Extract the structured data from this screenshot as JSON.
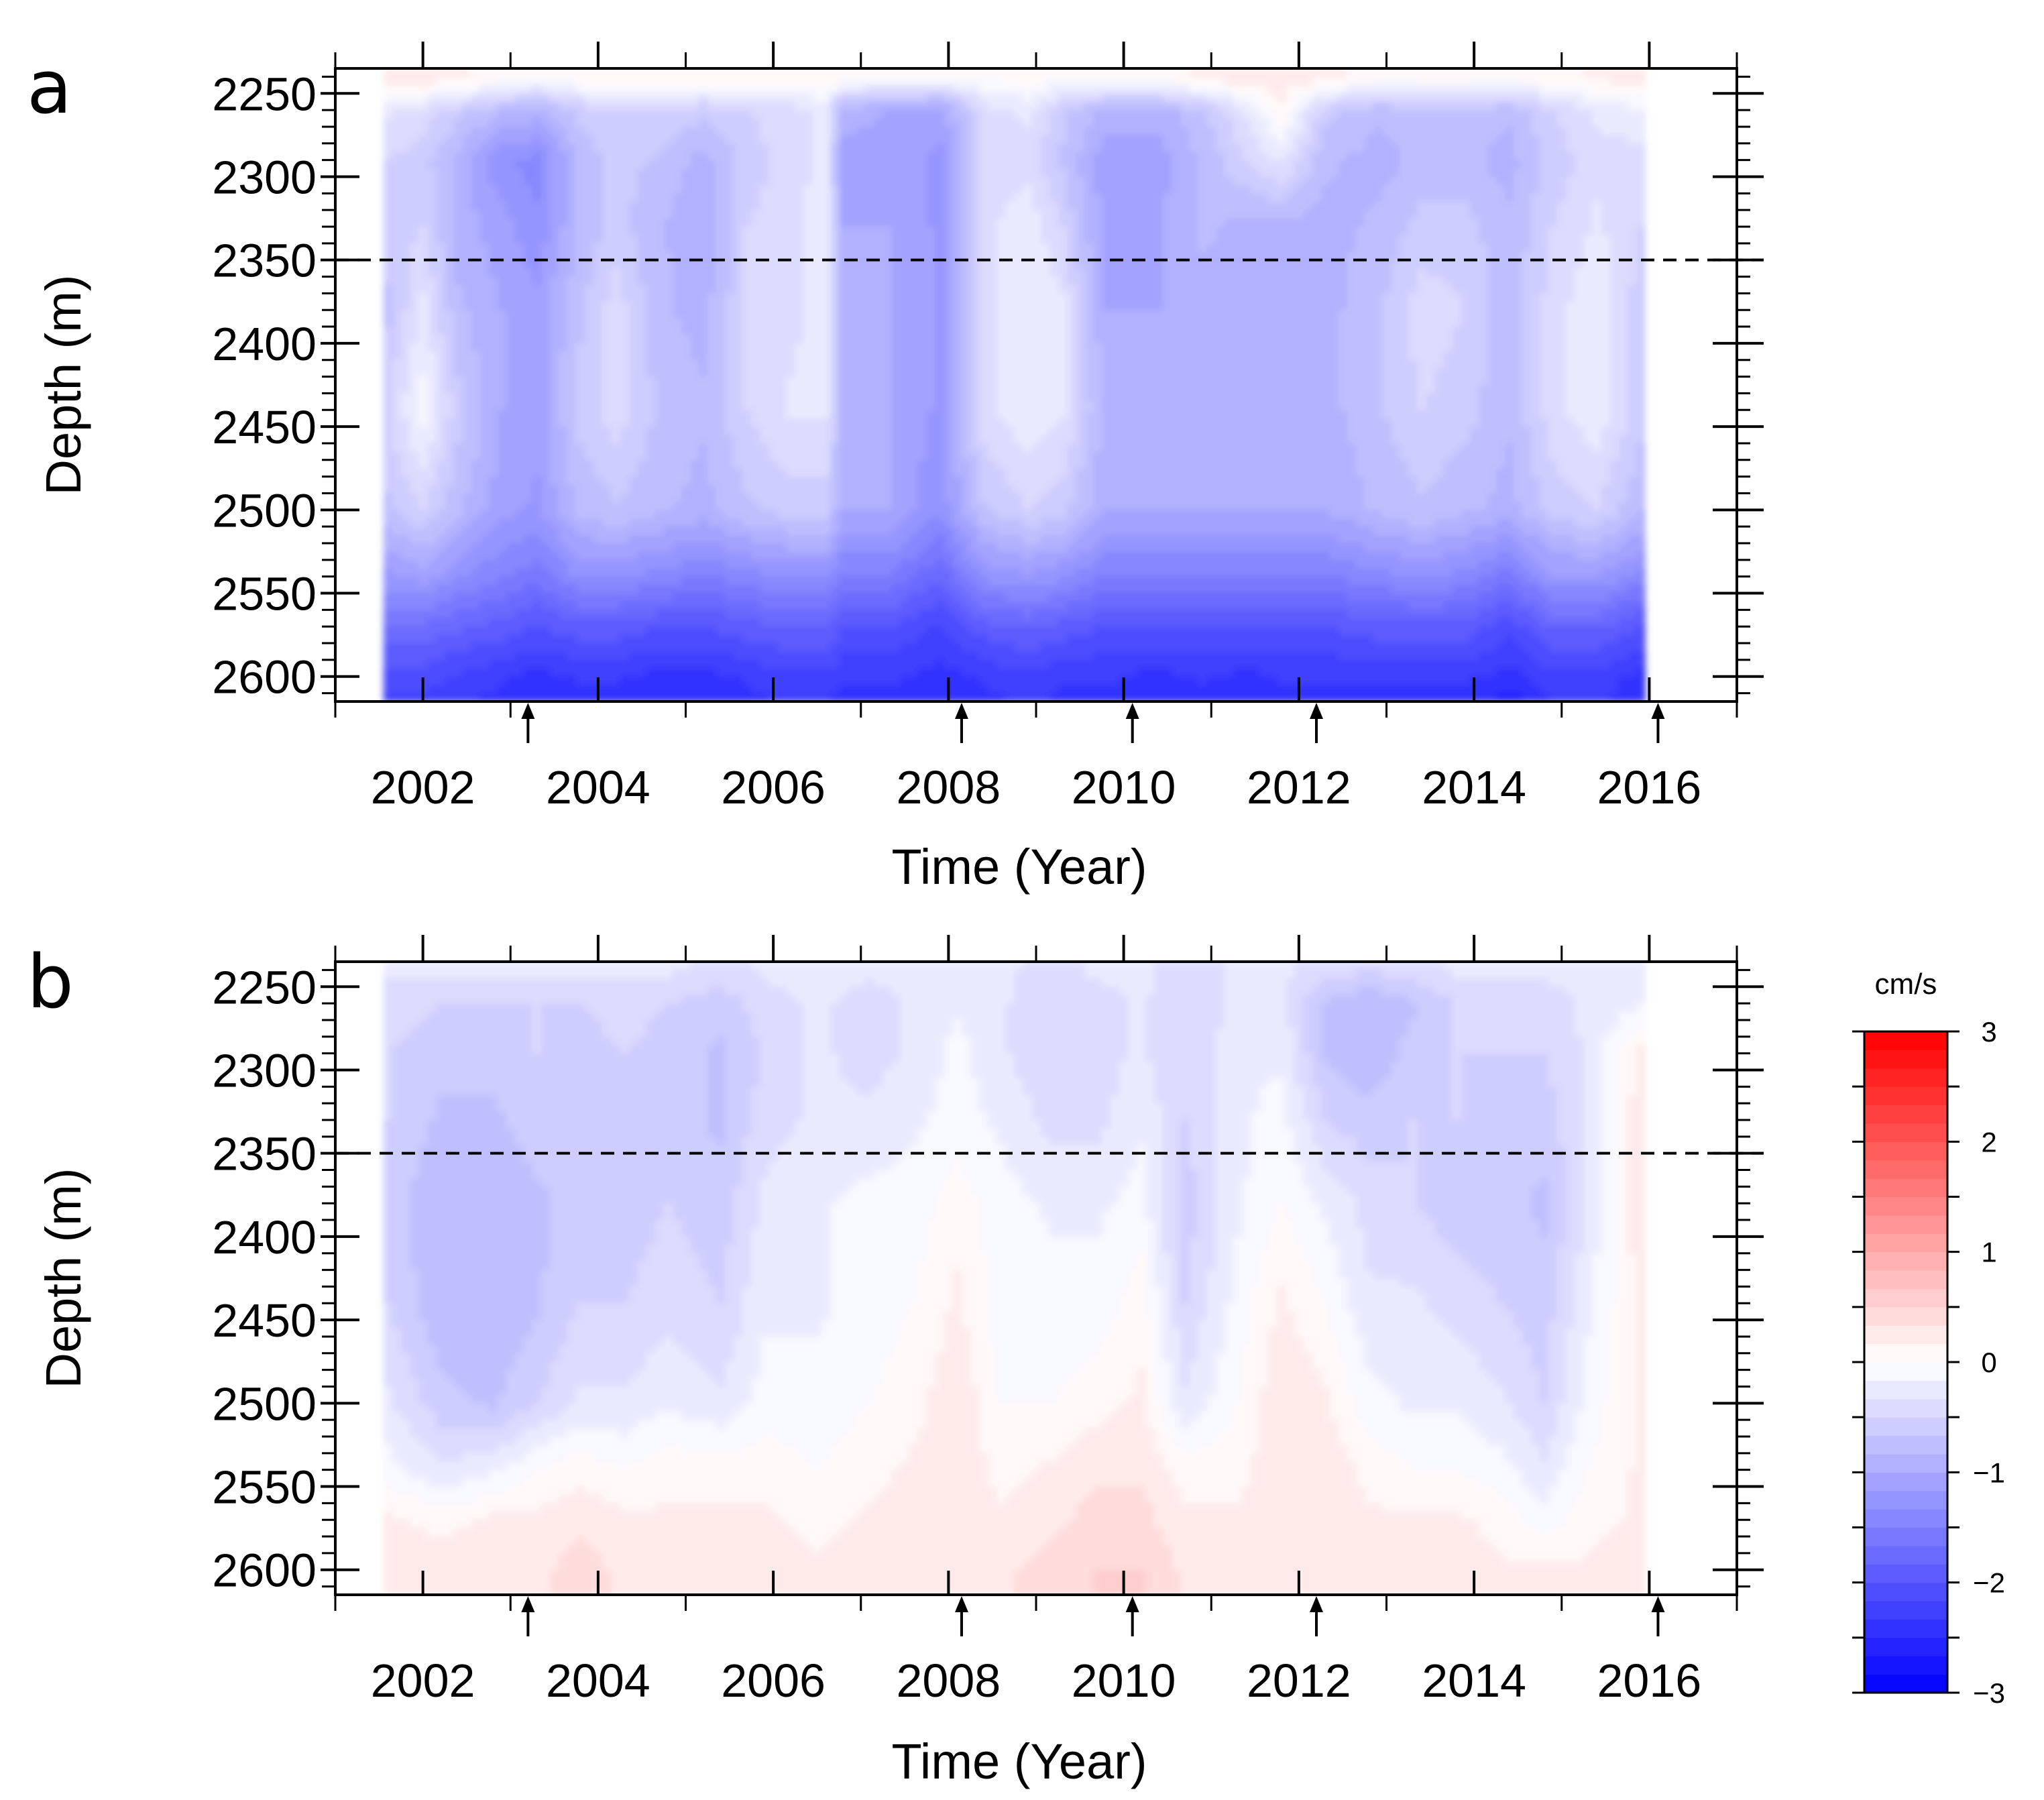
{
  "chart_data": [
    {
      "panel": "a",
      "type": "heatmap",
      "xlabel": "Time (Year)",
      "ylabel": "Depth (m)",
      "xlim": [
        2001,
        2017
      ],
      "ylim": [
        2235,
        2615
      ],
      "x_ticks": [
        2002,
        2004,
        2006,
        2008,
        2010,
        2012,
        2014,
        2016
      ],
      "y_ticks": [
        2250,
        2300,
        2350,
        2400,
        2450,
        2500,
        2550,
        2600
      ],
      "data_time_range": [
        2001.55,
        2015.95
      ],
      "dashed_line_depth": 2350,
      "arrow_times": [
        2003.2,
        2008.15,
        2010.1,
        2012.2,
        2016.1
      ],
      "profile_depths": [
        2240,
        2260,
        2290,
        2330,
        2380,
        2440,
        2500,
        2540,
        2570,
        2600,
        2615
      ],
      "profiles": [
        {
          "t": 2001.6,
          "v": [
            0.3,
            -0.3,
            -0.5,
            -0.6,
            -0.7,
            -0.5,
            -0.7,
            -1.2,
            -1.7,
            -2.1,
            -2.2
          ]
        },
        {
          "t": 2002.0,
          "v": [
            0.3,
            -0.4,
            -0.6,
            -0.5,
            -0.3,
            -0.1,
            -0.5,
            -1.1,
            -1.7,
            -2.1,
            -2.2
          ]
        },
        {
          "t": 2002.4,
          "v": [
            0.2,
            -0.6,
            -0.9,
            -0.9,
            -0.8,
            -0.6,
            -0.8,
            -1.3,
            -1.8,
            -2.2,
            -2.3
          ]
        },
        {
          "t": 2002.9,
          "v": [
            0.1,
            -0.8,
            -1.3,
            -1.1,
            -1.0,
            -1.0,
            -1.1,
            -1.5,
            -1.9,
            -2.3,
            -2.4
          ]
        },
        {
          "t": 2003.3,
          "v": [
            0.0,
            -0.9,
            -1.4,
            -1.3,
            -1.1,
            -1.1,
            -1.2,
            -1.6,
            -2.0,
            -2.4,
            -2.5
          ]
        },
        {
          "t": 2003.8,
          "v": [
            0.1,
            -0.6,
            -0.8,
            -0.8,
            -0.7,
            -0.6,
            -0.8,
            -1.3,
            -1.9,
            -2.3,
            -2.4
          ]
        },
        {
          "t": 2004.2,
          "v": [
            0.1,
            -0.5,
            -0.6,
            -0.6,
            -0.4,
            -0.4,
            -0.7,
            -1.3,
            -1.9,
            -2.3,
            -2.4
          ]
        },
        {
          "t": 2004.7,
          "v": [
            0.1,
            -0.5,
            -0.7,
            -0.8,
            -0.8,
            -0.7,
            -0.8,
            -1.4,
            -2.0,
            -2.4,
            -2.5
          ]
        },
        {
          "t": 2005.2,
          "v": [
            0.1,
            -0.6,
            -0.9,
            -1.0,
            -0.9,
            -0.8,
            -0.9,
            -1.5,
            -2.0,
            -2.4,
            -2.5
          ]
        },
        {
          "t": 2005.7,
          "v": [
            0.1,
            -0.5,
            -0.6,
            -0.5,
            -0.5,
            -0.5,
            -0.7,
            -1.4,
            -1.9,
            -2.3,
            -2.4
          ]
        },
        {
          "t": 2006.2,
          "v": [
            0.1,
            -0.4,
            -0.4,
            -0.4,
            -0.4,
            -0.3,
            -0.6,
            -1.3,
            -1.8,
            -2.2,
            -2.3
          ]
        },
        {
          "t": 2006.6,
          "v": [
            0.1,
            -0.3,
            -0.3,
            -0.2,
            -0.2,
            -0.3,
            -0.6,
            -1.3,
            -1.8,
            -2.2,
            -2.3
          ]
        },
        {
          "t": 2006.8,
          "v": [
            0.1,
            -0.9,
            -1.1,
            -1.0,
            -1.0,
            -0.9,
            -1.0,
            -1.5,
            -2.0,
            -2.3,
            -2.4
          ]
        },
        {
          "t": 2007.3,
          "v": [
            0.0,
            -1.0,
            -1.1,
            -1.0,
            -1.0,
            -1.0,
            -1.0,
            -1.5,
            -2.0,
            -2.3,
            -2.4
          ]
        },
        {
          "t": 2007.9,
          "v": [
            0.0,
            -1.1,
            -1.2,
            -1.2,
            -1.2,
            -1.2,
            -1.3,
            -1.8,
            -2.2,
            -2.4,
            -2.5
          ]
        },
        {
          "t": 2008.4,
          "v": [
            0.0,
            -0.4,
            -0.5,
            -0.4,
            -0.4,
            -0.4,
            -0.7,
            -1.3,
            -1.9,
            -2.3,
            -2.4
          ]
        },
        {
          "t": 2008.9,
          "v": [
            0.1,
            -0.3,
            -0.4,
            -0.2,
            -0.2,
            -0.2,
            -0.5,
            -1.2,
            -1.8,
            -2.2,
            -2.3
          ]
        },
        {
          "t": 2009.3,
          "v": [
            0.0,
            -0.6,
            -0.7,
            -0.5,
            -0.3,
            -0.3,
            -0.6,
            -1.3,
            -1.9,
            -2.3,
            -2.4
          ]
        },
        {
          "t": 2009.8,
          "v": [
            0.1,
            -0.9,
            -1.1,
            -1.1,
            -1.0,
            -0.9,
            -1.0,
            -1.5,
            -2.0,
            -2.3,
            -2.4
          ]
        },
        {
          "t": 2010.4,
          "v": [
            0.1,
            -0.9,
            -1.1,
            -1.0,
            -1.0,
            -0.9,
            -1.0,
            -1.5,
            -2.0,
            -2.4,
            -2.5
          ]
        },
        {
          "t": 2010.9,
          "v": [
            0.2,
            -0.7,
            -0.8,
            -0.8,
            -0.9,
            -0.9,
            -1.0,
            -1.5,
            -2.0,
            -2.3,
            -2.4
          ]
        },
        {
          "t": 2011.4,
          "v": [
            0.3,
            -0.3,
            -0.5,
            -0.9,
            -0.9,
            -1.0,
            -1.0,
            -1.5,
            -2.0,
            -2.4,
            -2.5
          ]
        },
        {
          "t": 2011.8,
          "v": [
            0.3,
            0.1,
            -0.3,
            -0.9,
            -1.0,
            -1.0,
            -1.0,
            -1.5,
            -2.0,
            -2.3,
            -2.4
          ]
        },
        {
          "t": 2012.3,
          "v": [
            0.2,
            -0.6,
            -0.8,
            -0.9,
            -0.9,
            -0.9,
            -1.0,
            -1.5,
            -2.0,
            -2.3,
            -2.4
          ]
        },
        {
          "t": 2012.9,
          "v": [
            0.1,
            -0.8,
            -0.9,
            -0.8,
            -0.7,
            -0.7,
            -0.8,
            -1.4,
            -1.9,
            -2.3,
            -2.4
          ]
        },
        {
          "t": 2013.4,
          "v": [
            0.1,
            -0.7,
            -0.8,
            -0.6,
            -0.4,
            -0.5,
            -0.7,
            -1.3,
            -1.9,
            -2.3,
            -2.4
          ]
        },
        {
          "t": 2013.9,
          "v": [
            0.1,
            -0.7,
            -0.8,
            -0.6,
            -0.5,
            -0.6,
            -0.8,
            -1.4,
            -1.9,
            -2.3,
            -2.4
          ]
        },
        {
          "t": 2014.4,
          "v": [
            0.1,
            -0.8,
            -0.9,
            -0.8,
            -0.8,
            -0.8,
            -0.9,
            -1.6,
            -2.1,
            -2.4,
            -2.6
          ]
        },
        {
          "t": 2014.9,
          "v": [
            0.1,
            -0.5,
            -0.6,
            -0.5,
            -0.4,
            -0.4,
            -0.6,
            -1.2,
            -1.8,
            -2.2,
            -2.3
          ]
        },
        {
          "t": 2015.4,
          "v": [
            0.2,
            -0.3,
            -0.4,
            -0.3,
            -0.2,
            -0.2,
            -0.5,
            -1.2,
            -1.8,
            -2.2,
            -2.3
          ]
        },
        {
          "t": 2015.9,
          "v": [
            0.3,
            -0.2,
            -0.4,
            -0.5,
            -0.6,
            -0.6,
            -0.8,
            -1.4,
            -2.0,
            -2.4,
            -2.5
          ]
        }
      ]
    },
    {
      "panel": "b",
      "type": "heatmap",
      "xlabel": "Time (Year)",
      "ylabel": "Depth (m)",
      "xlim": [
        2001,
        2017
      ],
      "ylim": [
        2235,
        2615
      ],
      "x_ticks": [
        2002,
        2004,
        2006,
        2008,
        2010,
        2012,
        2014,
        2016
      ],
      "y_ticks": [
        2250,
        2300,
        2350,
        2400,
        2450,
        2500,
        2550,
        2600
      ],
      "data_time_range": [
        2001.55,
        2015.95
      ],
      "dashed_line_depth": 2350,
      "arrow_times": [
        2003.2,
        2008.15,
        2010.1,
        2012.2,
        2016.1
      ],
      "profile_depths": [
        2240,
        2260,
        2290,
        2330,
        2380,
        2440,
        2500,
        2540,
        2570,
        2600,
        2615
      ],
      "profiles": [
        {
          "t": 2001.6,
          "v": [
            -0.3,
            -0.4,
            -0.5,
            -0.5,
            -0.6,
            -0.5,
            -0.3,
            -0.1,
            0.2,
            0.3,
            0.3
          ]
        },
        {
          "t": 2002.2,
          "v": [
            -0.3,
            -0.5,
            -0.6,
            -0.7,
            -0.8,
            -0.8,
            -0.6,
            -0.3,
            0.1,
            0.3,
            0.3
          ]
        },
        {
          "t": 2002.8,
          "v": [
            -0.3,
            -0.5,
            -0.6,
            -0.7,
            -0.8,
            -0.8,
            -0.7,
            -0.2,
            0.2,
            0.3,
            0.3
          ]
        },
        {
          "t": 2003.3,
          "v": [
            -0.3,
            -0.5,
            -0.5,
            -0.6,
            -0.7,
            -0.7,
            -0.5,
            0.0,
            0.2,
            0.3,
            0.3
          ]
        },
        {
          "t": 2003.8,
          "v": [
            -0.3,
            -0.5,
            -0.6,
            -0.6,
            -0.6,
            -0.5,
            -0.3,
            0.1,
            0.3,
            0.4,
            0.4
          ]
        },
        {
          "t": 2004.3,
          "v": [
            -0.3,
            -0.4,
            -0.5,
            -0.6,
            -0.6,
            -0.5,
            -0.3,
            0.0,
            0.2,
            0.3,
            0.3
          ]
        },
        {
          "t": 2004.8,
          "v": [
            -0.3,
            -0.5,
            -0.6,
            -0.6,
            -0.5,
            -0.4,
            -0.2,
            0.1,
            0.2,
            0.3,
            0.3
          ]
        },
        {
          "t": 2005.4,
          "v": [
            -0.4,
            -0.6,
            -0.7,
            -0.7,
            -0.6,
            -0.5,
            -0.3,
            0.1,
            0.2,
            0.3,
            0.3
          ]
        },
        {
          "t": 2005.9,
          "v": [
            -0.3,
            -0.4,
            -0.5,
            -0.4,
            -0.3,
            -0.2,
            -0.1,
            0.1,
            0.2,
            0.3,
            0.3
          ]
        },
        {
          "t": 2006.5,
          "v": [
            -0.3,
            -0.3,
            -0.3,
            -0.3,
            -0.2,
            -0.2,
            -0.1,
            0.0,
            0.1,
            0.2,
            0.2
          ]
        },
        {
          "t": 2007.1,
          "v": [
            -0.3,
            -0.4,
            -0.4,
            -0.3,
            -0.1,
            -0.1,
            0.0,
            0.1,
            0.2,
            0.3,
            0.3
          ]
        },
        {
          "t": 2007.6,
          "v": [
            -0.3,
            -0.3,
            -0.3,
            -0.2,
            -0.1,
            0.0,
            0.1,
            0.2,
            0.3,
            0.3,
            0.3
          ]
        },
        {
          "t": 2008.1,
          "v": [
            -0.2,
            -0.2,
            -0.1,
            -0.1,
            0.1,
            0.2,
            0.3,
            0.3,
            0.3,
            0.3,
            0.3
          ]
        },
        {
          "t": 2008.6,
          "v": [
            -0.3,
            -0.3,
            -0.3,
            -0.2,
            -0.1,
            -0.1,
            0.0,
            0.1,
            0.2,
            0.3,
            0.3
          ]
        },
        {
          "t": 2009.2,
          "v": [
            -0.4,
            -0.5,
            -0.5,
            -0.4,
            -0.2,
            -0.1,
            0.0,
            0.2,
            0.3,
            0.4,
            0.4
          ]
        },
        {
          "t": 2009.7,
          "v": [
            -0.3,
            -0.4,
            -0.4,
            -0.4,
            -0.2,
            -0.1,
            0.1,
            0.3,
            0.4,
            0.5,
            0.5
          ]
        },
        {
          "t": 2010.2,
          "v": [
            -0.3,
            -0.3,
            -0.3,
            -0.2,
            -0.1,
            0.1,
            0.2,
            0.3,
            0.4,
            0.5,
            0.5
          ]
        },
        {
          "t": 2010.7,
          "v": [
            -0.4,
            -0.5,
            -0.5,
            -0.5,
            -0.6,
            -0.5,
            -0.3,
            0.1,
            0.2,
            0.3,
            0.3
          ]
        },
        {
          "t": 2011.3,
          "v": [
            -0.3,
            -0.3,
            -0.2,
            -0.2,
            -0.2,
            -0.1,
            0.0,
            0.1,
            0.2,
            0.3,
            0.3
          ]
        },
        {
          "t": 2011.8,
          "v": [
            -0.3,
            -0.3,
            -0.2,
            -0.1,
            0.0,
            0.2,
            0.3,
            0.3,
            0.3,
            0.3,
            0.3
          ]
        },
        {
          "t": 2012.3,
          "v": [
            -0.4,
            -0.7,
            -0.7,
            -0.5,
            -0.2,
            0.0,
            0.2,
            0.3,
            0.3,
            0.3,
            0.3
          ]
        },
        {
          "t": 2012.8,
          "v": [
            -0.5,
            -0.8,
            -0.8,
            -0.6,
            -0.4,
            -0.3,
            -0.1,
            0.1,
            0.2,
            0.3,
            0.3
          ]
        },
        {
          "t": 2013.3,
          "v": [
            -0.4,
            -0.7,
            -0.6,
            -0.5,
            -0.5,
            -0.3,
            -0.2,
            0.0,
            0.2,
            0.3,
            0.3
          ]
        },
        {
          "t": 2013.8,
          "v": [
            -0.3,
            -0.5,
            -0.5,
            -0.5,
            -0.6,
            -0.4,
            -0.2,
            0.0,
            0.2,
            0.3,
            0.3
          ]
        },
        {
          "t": 2014.3,
          "v": [
            -0.3,
            -0.5,
            -0.5,
            -0.6,
            -0.6,
            -0.5,
            -0.3,
            -0.1,
            0.1,
            0.2,
            0.2
          ]
        },
        {
          "t": 2014.8,
          "v": [
            -0.3,
            -0.4,
            -0.5,
            -0.6,
            -0.7,
            -0.6,
            -0.5,
            -0.3,
            -0.1,
            0.2,
            0.2
          ]
        },
        {
          "t": 2015.3,
          "v": [
            -0.3,
            -0.3,
            -0.3,
            -0.3,
            -0.3,
            -0.2,
            -0.1,
            0.0,
            0.1,
            0.2,
            0.2
          ]
        },
        {
          "t": 2015.9,
          "v": [
            -0.3,
            -0.2,
            0.2,
            0.3,
            0.3,
            0.2,
            0.2,
            0.2,
            0.2,
            0.3,
            0.3
          ]
        }
      ]
    }
  ],
  "colorbar": {
    "title": "cm/s",
    "range": [
      -3,
      3
    ],
    "levels": 36,
    "tick_values": [
      3,
      2,
      1,
      0,
      -1,
      -2,
      -3
    ],
    "tick_labels": [
      "3",
      "2",
      "1",
      "0",
      "−1",
      "−2",
      "−3"
    ],
    "color_max": "#ff0000",
    "color_mid": "#ffffff",
    "color_min": "#0000ff"
  },
  "panel_labels": [
    "a",
    "b"
  ],
  "x_tick_labels": [
    "2002",
    "2004",
    "2006",
    "2008",
    "2010",
    "2012",
    "2014",
    "2016"
  ],
  "y_tick_labels": [
    "2250",
    "2300",
    "2350",
    "2400",
    "2450",
    "2500",
    "2550",
    "2600"
  ],
  "x_axis_label": "Time (Year)",
  "y_axis_label": "Depth (m)"
}
